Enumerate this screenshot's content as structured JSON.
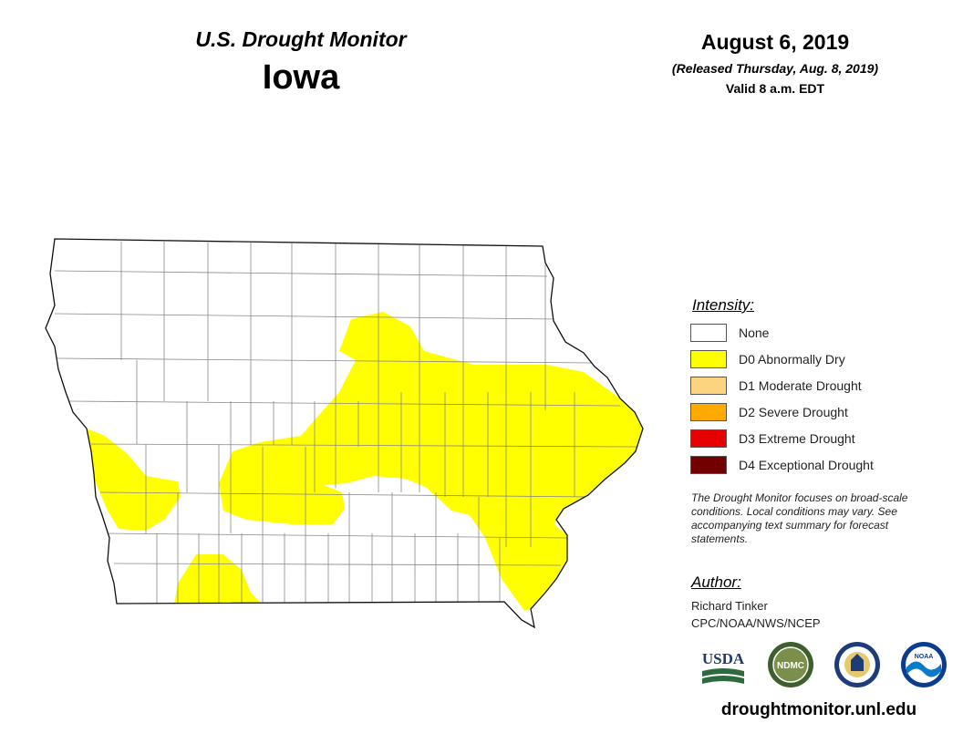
{
  "header": {
    "title": "U.S. Drought Monitor",
    "state": "Iowa",
    "date": "August 6, 2019",
    "released": "(Released Thursday, Aug. 8, 2019)",
    "valid": "Valid 8 a.m. EDT"
  },
  "legend": {
    "title": "Intensity:",
    "items": [
      {
        "label": "None",
        "color": "#ffffff"
      },
      {
        "label": "D0 Abnormally Dry",
        "color": "#ffff00"
      },
      {
        "label": "D1 Moderate Drought",
        "color": "#fcd37f"
      },
      {
        "label": "D2 Severe Drought",
        "color": "#ffaa00"
      },
      {
        "label": "D3 Extreme Drought",
        "color": "#e60000"
      },
      {
        "label": "D4 Exceptional Drought",
        "color": "#730000"
      }
    ]
  },
  "disclaimer": "The Drought Monitor focuses on broad-scale conditions. Local conditions may vary. See accompanying text summary for forecast statements.",
  "author": {
    "title": "Author:",
    "name": "Richard Tinker",
    "org": "CPC/NOAA/NWS/NCEP"
  },
  "logos": {
    "usda": "USDA",
    "ndmc": "NDMC",
    "doc": "DOC",
    "noaa": "NOAA"
  },
  "website": "droughtmonitor.unl.edu",
  "map": {
    "drought_areas": [
      {
        "category": "D0 Abnormally Dry",
        "color": "#ffff00",
        "region": "central, east-central and eastern Iowa"
      },
      {
        "category": "D0 Abnormally Dry",
        "color": "#ffff00",
        "region": "western Iowa along Missouri River"
      },
      {
        "category": "D0 Abnormally Dry",
        "color": "#ffff00",
        "region": "south-central Iowa"
      }
    ]
  }
}
